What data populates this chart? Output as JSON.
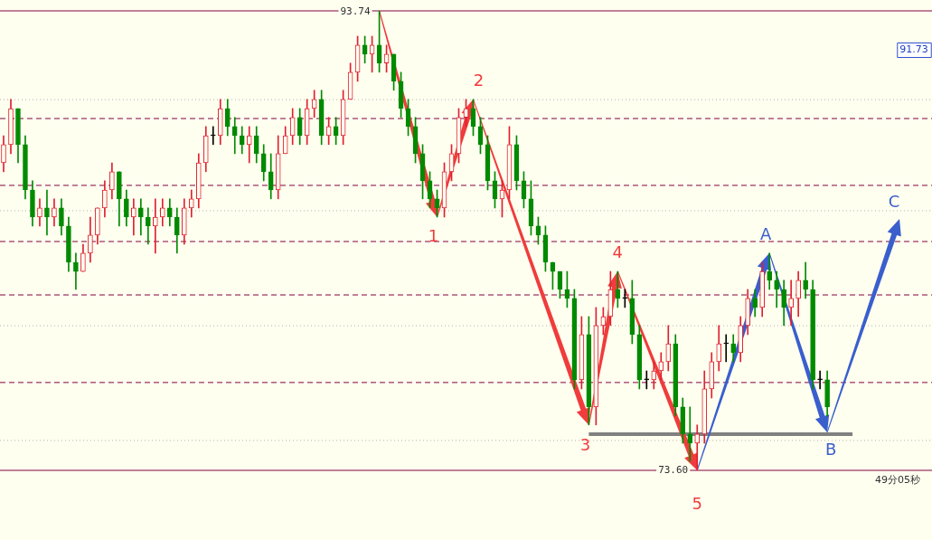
{
  "chart_data": {
    "type": "candlestick",
    "tick_labels": false,
    "categories": [
      null,
      null,
      null,
      null,
      null,
      null,
      null,
      null,
      null,
      null,
      null,
      null,
      null,
      null,
      null,
      null,
      null,
      null,
      null,
      null,
      null,
      null,
      null,
      null,
      null,
      null,
      null,
      null,
      null,
      null,
      null,
      null,
      null,
      null,
      null,
      null,
      null,
      null,
      null,
      null,
      null,
      null,
      null,
      null,
      null,
      null,
      null,
      null,
      null,
      null,
      null,
      null,
      null,
      null,
      null,
      null,
      null,
      null,
      null,
      null,
      null,
      null,
      null,
      null,
      null,
      null,
      null,
      null,
      null,
      null,
      null,
      null,
      null,
      null,
      null,
      null,
      null,
      null,
      null,
      null,
      null,
      null,
      null,
      null,
      null,
      null,
      null,
      null,
      null,
      null,
      null,
      null,
      null,
      null,
      null,
      null,
      null,
      null,
      null,
      null,
      null,
      null,
      null,
      null,
      null,
      null,
      null,
      null,
      null,
      null,
      null,
      null,
      null,
      null,
      null,
      null,
      null,
      null,
      null,
      null,
      null,
      null,
      null,
      null,
      null,
      null,
      null,
      null,
      null
    ],
    "ohlc": [
      [
        87.08,
        88.27,
        86.69,
        87.88
      ],
      [
        87.88,
        89.86,
        87.48,
        89.46
      ],
      [
        89.46,
        89.46,
        87.08,
        87.88
      ],
      [
        87.88,
        88.27,
        85.5,
        85.89
      ],
      [
        85.89,
        86.29,
        84.31,
        84.7
      ],
      [
        84.7,
        85.5,
        84.31,
        85.1
      ],
      [
        85.1,
        85.89,
        83.91,
        84.7
      ],
      [
        84.7,
        85.5,
        84.31,
        85.1
      ],
      [
        85.1,
        85.5,
        83.91,
        84.31
      ],
      [
        84.31,
        84.7,
        82.32,
        82.72
      ],
      [
        82.72,
        83.12,
        81.53,
        82.32
      ],
      [
        82.32,
        83.51,
        82.32,
        83.12
      ],
      [
        83.12,
        84.7,
        82.72,
        83.91
      ],
      [
        83.91,
        85.1,
        83.51,
        85.1
      ],
      [
        85.1,
        86.29,
        84.7,
        85.89
      ],
      [
        85.89,
        87.08,
        85.5,
        86.69
      ],
      [
        86.69,
        86.69,
        84.31,
        85.5
      ],
      [
        85.5,
        85.89,
        84.31,
        84.7
      ],
      [
        84.7,
        85.5,
        83.91,
        85.1
      ],
      [
        85.1,
        85.5,
        83.91,
        84.7
      ],
      [
        84.7,
        85.1,
        83.51,
        84.31
      ],
      [
        84.31,
        85.5,
        83.12,
        84.7
      ],
      [
        84.7,
        85.5,
        84.31,
        85.1
      ],
      [
        85.1,
        85.5,
        84.31,
        84.7
      ],
      [
        84.7,
        85.1,
        83.12,
        83.91
      ],
      [
        83.91,
        85.5,
        83.51,
        85.1
      ],
      [
        85.1,
        85.89,
        84.7,
        85.5
      ],
      [
        85.5,
        87.48,
        85.1,
        87.08
      ],
      [
        87.08,
        88.67,
        86.69,
        88.27
      ],
      [
        88.27,
        88.67,
        87.88,
        88.27
      ],
      [
        88.27,
        89.86,
        87.88,
        89.46
      ],
      [
        89.46,
        89.86,
        88.27,
        88.67
      ],
      [
        88.67,
        89.07,
        87.48,
        88.27
      ],
      [
        88.27,
        88.67,
        87.48,
        87.88
      ],
      [
        87.88,
        88.67,
        87.08,
        88.27
      ],
      [
        88.27,
        88.67,
        87.08,
        87.48
      ],
      [
        87.48,
        87.88,
        86.29,
        86.69
      ],
      [
        86.69,
        87.48,
        85.5,
        85.89
      ],
      [
        85.89,
        88.27,
        85.5,
        87.48
      ],
      [
        87.48,
        88.67,
        87.48,
        88.27
      ],
      [
        88.27,
        89.46,
        87.88,
        89.07
      ],
      [
        89.07,
        89.46,
        87.88,
        88.27
      ],
      [
        88.27,
        89.86,
        87.88,
        89.46
      ],
      [
        89.46,
        90.26,
        89.07,
        89.86
      ],
      [
        89.86,
        90.26,
        87.88,
        88.27
      ],
      [
        88.27,
        89.07,
        87.88,
        88.67
      ],
      [
        88.67,
        89.07,
        87.88,
        88.27
      ],
      [
        88.27,
        90.26,
        87.88,
        89.86
      ],
      [
        89.86,
        91.45,
        89.86,
        91.05
      ],
      [
        91.05,
        92.63,
        90.65,
        92.24
      ],
      [
        92.24,
        92.63,
        91.45,
        91.84
      ],
      [
        91.84,
        92.63,
        91.05,
        92.24
      ],
      [
        92.24,
        93.74,
        91.05,
        91.45
      ],
      [
        91.45,
        92.24,
        91.05,
        91.84
      ],
      [
        91.84,
        91.84,
        90.26,
        90.65
      ],
      [
        90.65,
        91.05,
        89.07,
        89.46
      ],
      [
        89.46,
        89.86,
        88.27,
        88.67
      ],
      [
        88.67,
        89.07,
        87.08,
        87.48
      ],
      [
        87.48,
        87.88,
        85.5,
        86.29
      ],
      [
        86.29,
        86.69,
        85.1,
        85.5
      ],
      [
        85.5,
        85.89,
        84.7,
        85.1
      ],
      [
        85.1,
        87.08,
        84.7,
        86.69
      ],
      [
        86.69,
        87.88,
        86.29,
        87.48
      ],
      [
        87.48,
        89.46,
        87.08,
        89.07
      ],
      [
        89.07,
        89.86,
        88.67,
        89.46
      ],
      [
        89.46,
        89.86,
        88.27,
        88.67
      ],
      [
        88.67,
        89.07,
        87.48,
        87.88
      ],
      [
        87.88,
        88.27,
        85.89,
        86.29
      ],
      [
        86.29,
        86.69,
        85.1,
        85.5
      ],
      [
        85.5,
        86.29,
        84.7,
        85.89
      ],
      [
        85.89,
        88.67,
        85.5,
        87.88
      ],
      [
        87.88,
        88.27,
        85.89,
        86.29
      ],
      [
        86.29,
        86.69,
        85.1,
        85.5
      ],
      [
        85.5,
        86.29,
        83.91,
        84.31
      ],
      [
        84.31,
        84.7,
        83.51,
        83.91
      ],
      [
        83.91,
        84.31,
        82.32,
        82.72
      ],
      [
        82.72,
        82.72,
        81.53,
        82.32
      ],
      [
        82.32,
        82.32,
        81.14,
        81.53
      ],
      [
        81.53,
        82.32,
        80.74,
        81.14
      ],
      [
        81.14,
        81.53,
        77.17,
        77.57
      ],
      [
        77.57,
        80.34,
        77.17,
        79.55
      ],
      [
        79.55,
        80.34,
        75.59,
        76.38
      ],
      [
        76.38,
        80.74,
        75.59,
        79.95
      ],
      [
        79.95,
        80.74,
        79.55,
        80.34
      ],
      [
        80.34,
        82.32,
        79.95,
        81.53
      ],
      [
        81.53,
        82.32,
        80.74,
        81.14
      ],
      [
        81.14,
        81.53,
        80.74,
        81.14
      ],
      [
        81.14,
        81.93,
        79.15,
        79.55
      ],
      [
        79.55,
        79.95,
        77.17,
        77.57
      ],
      [
        77.57,
        77.96,
        77.17,
        77.57
      ],
      [
        77.57,
        78.36,
        77.17,
        77.96
      ],
      [
        77.96,
        78.76,
        77.57,
        78.36
      ],
      [
        78.36,
        79.95,
        77.96,
        79.15
      ],
      [
        79.15,
        79.55,
        75.98,
        76.38
      ],
      [
        76.38,
        76.77,
        74.79,
        75.19
      ],
      [
        75.19,
        76.38,
        74.0,
        74.79
      ],
      [
        74.79,
        75.59,
        73.6,
        75.19
      ],
      [
        75.19,
        77.96,
        74.79,
        77.17
      ],
      [
        77.17,
        78.76,
        76.77,
        78.36
      ],
      [
        78.36,
        79.95,
        77.96,
        79.15
      ],
      [
        79.15,
        79.55,
        78.36,
        79.15
      ],
      [
        79.15,
        79.55,
        78.36,
        78.76
      ],
      [
        78.76,
        80.34,
        78.36,
        79.95
      ],
      [
        79.95,
        81.53,
        79.55,
        81.14
      ],
      [
        81.14,
        81.53,
        80.34,
        80.74
      ],
      [
        80.74,
        82.72,
        80.34,
        82.32
      ],
      [
        82.32,
        83.12,
        81.53,
        81.93
      ],
      [
        81.93,
        82.32,
        80.74,
        81.53
      ],
      [
        81.53,
        81.93,
        79.95,
        80.74
      ],
      [
        80.74,
        81.93,
        79.95,
        81.14
      ],
      [
        81.14,
        82.32,
        80.34,
        81.93
      ],
      [
        81.93,
        82.72,
        81.14,
        81.53
      ],
      [
        81.53,
        81.93,
        77.17,
        77.57
      ],
      [
        77.57,
        77.96,
        77.17,
        77.57
      ],
      [
        77.57,
        77.96,
        75.98,
        76.38
      ],
      null,
      null,
      null,
      null,
      null,
      null,
      null,
      null,
      null,
      null,
      null,
      null,
      null,
      null
    ],
    "colors": [
      "#e02030",
      "#e02030",
      "#008a00",
      "#008a00",
      "#008a00",
      "#e02030",
      "#008a00",
      "#e02030",
      "#008a00",
      "#008a00",
      "#008a00",
      "#e02030",
      "#e02030",
      "#e02030",
      "#e02030",
      "#e02030",
      "#008a00",
      "#008a00",
      "#e02030",
      "#008a00",
      "#008a00",
      "#e02030",
      "#e02030",
      "#008a00",
      "#008a00",
      "#e02030",
      "#e02030",
      "#e02030",
      "#e02030",
      "#000000",
      "#e02030",
      "#008a00",
      "#008a00",
      "#008a00",
      "#e02030",
      "#008a00",
      "#008a00",
      "#008a00",
      "#e02030",
      "#e02030",
      "#e02030",
      "#008a00",
      "#e02030",
      "#e02030",
      "#008a00",
      "#e02030",
      "#008a00",
      "#e02030",
      "#e02030",
      "#e02030",
      "#008a00",
      "#e02030",
      "#008a00",
      "#e02030",
      "#008a00",
      "#008a00",
      "#008a00",
      "#008a00",
      "#008a00",
      "#008a00",
      "#008a00",
      "#e02030",
      "#e02030",
      "#e02030",
      "#e02030",
      "#008a00",
      "#008a00",
      "#008a00",
      "#008a00",
      "#e02030",
      "#e02030",
      "#008a00",
      "#008a00",
      "#008a00",
      "#008a00",
      "#008a00",
      "#008a00",
      "#008a00",
      "#008a00",
      "#008a00",
      "#e02030",
      "#008a00",
      "#e02030",
      "#e02030",
      "#e02030",
      "#008a00",
      "#000000",
      "#008a00",
      "#008a00",
      "#000000",
      "#e02030",
      "#e02030",
      "#e02030",
      "#008a00",
      "#008a00",
      "#008a00",
      "#e02030",
      "#e02030",
      "#e02030",
      "#e02030",
      "#000000",
      "#008a00",
      "#e02030",
      "#e02030",
      "#008a00",
      "#e02030",
      "#008a00",
      "#008a00",
      "#008a00",
      "#e02030",
      "#e02030",
      "#008a00",
      "#008a00",
      "#000000",
      "#008a00",
      null,
      null,
      null,
      null,
      null,
      null,
      null,
      null,
      null,
      null,
      null,
      null,
      null,
      null
    ],
    "ref_lines": [
      {
        "axis": "y",
        "value": 93.74,
        "label": "93.74",
        "color": "#800040"
      },
      {
        "axis": "y",
        "value": 73.6,
        "label": "73.60",
        "color": "#800040"
      },
      {
        "axis": "y",
        "value": 89.02,
        "color": "#800040",
        "line_style": "dashed"
      },
      {
        "axis": "y",
        "value": 86.09,
        "color": "#800040",
        "line_style": "dashed"
      },
      {
        "axis": "y",
        "value": 83.63,
        "color": "#800040",
        "line_style": "dashed"
      },
      {
        "axis": "y",
        "value": 81.29,
        "color": "#800040",
        "line_style": "dashed"
      },
      {
        "axis": "y",
        "value": 77.45,
        "color": "#800040",
        "line_style": "dashed"
      },
      {
        "axis": "y",
        "value": 89.85,
        "color": "#b0b0b0",
        "line_style": "dotted"
      },
      {
        "axis": "y",
        "value": 84.98,
        "color": "#b0b0b0",
        "line_style": "dotted"
      },
      {
        "axis": "y",
        "value": 79.94,
        "color": "#b0b0b0",
        "line_style": "dotted"
      },
      {
        "axis": "y",
        "value": 74.91,
        "color": "#b0b0b0",
        "line_style": "dotted"
      },
      {
        "axis": "y",
        "value": 75.19,
        "color": "#808080"
      }
    ],
    "annotations": [
      {
        "text": "1",
        "y": 84.7
      },
      {
        "text": "2",
        "y": 89.86
      },
      {
        "text": "3",
        "y": 75.59
      },
      {
        "text": "4",
        "y": 82.32
      },
      {
        "text": "5",
        "y": 73.6
      },
      {
        "text": "A",
        "y": 83.12
      },
      {
        "text": "B",
        "y": 75.27
      },
      "C",
      "91.73",
      "49分05秒"
    ]
  }
}
